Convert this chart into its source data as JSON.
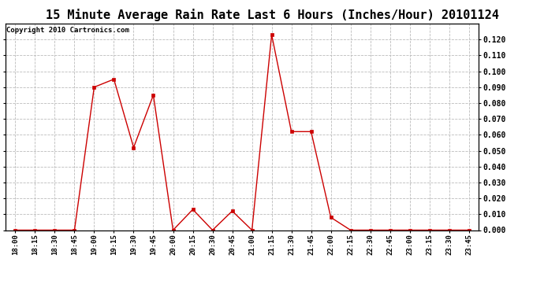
{
  "title": "15 Minute Average Rain Rate Last 6 Hours (Inches/Hour) 20101124",
  "copyright": "Copyright 2010 Cartronics.com",
  "x_labels": [
    "18:00",
    "18:15",
    "18:30",
    "18:45",
    "19:00",
    "19:15",
    "19:30",
    "19:45",
    "20:00",
    "20:15",
    "20:30",
    "20:45",
    "21:00",
    "21:15",
    "21:30",
    "21:45",
    "22:00",
    "22:15",
    "22:30",
    "22:45",
    "23:00",
    "23:15",
    "23:30",
    "23:45"
  ],
  "y_values": [
    0.0,
    0.0,
    0.0,
    0.0,
    0.09,
    0.095,
    0.052,
    0.085,
    0.0,
    0.013,
    0.0,
    0.012,
    0.0,
    0.123,
    0.062,
    0.062,
    0.008,
    0.0,
    0.0,
    0.0,
    0.0,
    0.0,
    0.0,
    0.0
  ],
  "line_color": "#cc0000",
  "marker_color": "#cc0000",
  "bg_color": "#ffffff",
  "grid_color": "#bbbbbb",
  "ylim": [
    0.0,
    0.13
  ],
  "yticks": [
    0.0,
    0.01,
    0.02,
    0.03,
    0.04,
    0.05,
    0.06,
    0.07,
    0.08,
    0.09,
    0.1,
    0.11,
    0.12
  ],
  "title_fontsize": 11,
  "copyright_fontsize": 6.5
}
